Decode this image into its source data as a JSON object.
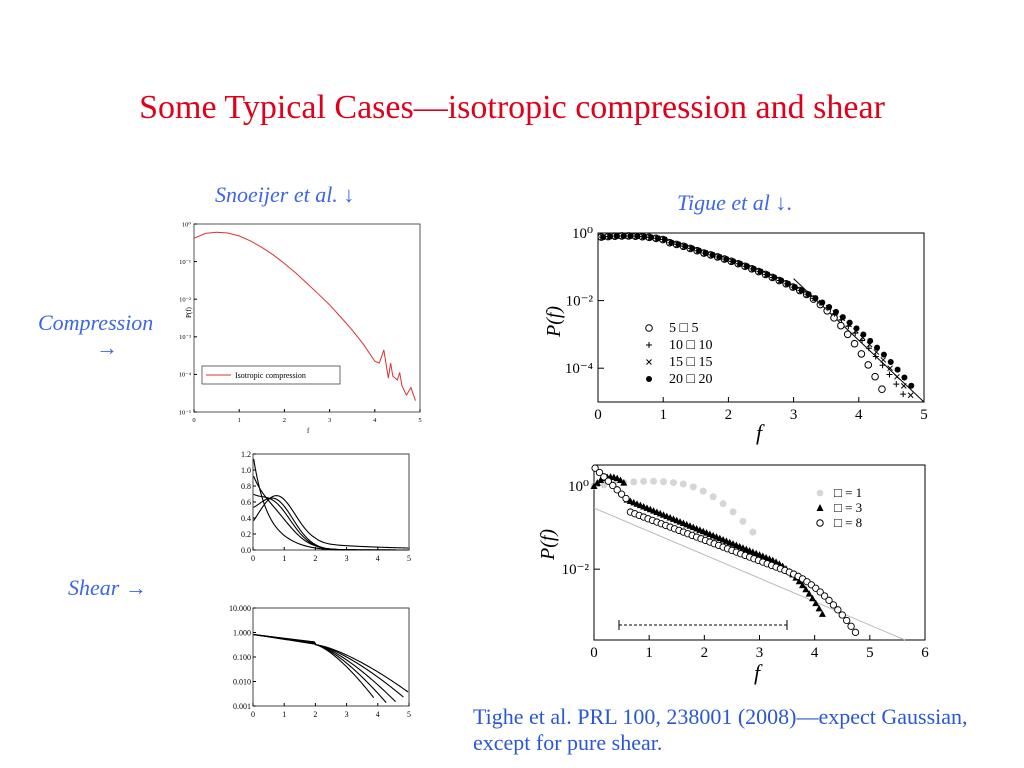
{
  "slide": {
    "title": "Some Typical Cases—isotropic compression and shear",
    "snoeijer_label": "Snoeijer et al.",
    "snoeijer_arrow": "↓",
    "tigue_label": "Tigue et al",
    "tigue_arrow": "↓.",
    "compression_label": "Compression",
    "compression_arrow": "→",
    "shear_label": "Shear",
    "shear_arrow": "→",
    "citation": "Tighe et al. PRL 100, 238001 (2008)—expect Gaussian, except for pure shear.",
    "colors": {
      "title": "#e0001a",
      "labels": "#3d66e8",
      "citation": "#2a57d6",
      "series_red": "#e03030"
    }
  },
  "chart_data": [
    {
      "id": "snoeijer-compression",
      "type": "line",
      "scale": "log-y",
      "xlim": [
        0,
        5
      ],
      "ylim": [
        -5,
        0
      ],
      "xticks": [
        "0",
        "1",
        "2",
        "3",
        "4",
        "5"
      ],
      "yticks": [
        "10⁰",
        "10⁻¹",
        "10⁻²",
        "10⁻³",
        "10⁻⁴",
        "10⁻⁵"
      ],
      "xlabel": "f",
      "ylabel": "P(f)",
      "legend": {
        "placement": "bottom-left",
        "entries": [
          "Isotropic compression"
        ]
      },
      "series": [
        {
          "name": "Isotropic compression",
          "color": "#e03030",
          "x": [
            0,
            0.25,
            0.5,
            0.75,
            1.0,
            1.25,
            1.5,
            1.75,
            2.0,
            2.25,
            2.5,
            2.75,
            3.0,
            3.25,
            3.5,
            3.75,
            4.0,
            4.1,
            4.2,
            4.3,
            4.35,
            4.4,
            4.5,
            4.55,
            4.6,
            4.7,
            4.8,
            4.9
          ],
          "y": [
            -0.38,
            -0.25,
            -0.22,
            -0.24,
            -0.32,
            -0.45,
            -0.62,
            -0.82,
            -1.05,
            -1.3,
            -1.58,
            -1.86,
            -2.15,
            -2.48,
            -2.82,
            -3.2,
            -3.65,
            -3.7,
            -3.35,
            -4.1,
            -3.7,
            -4.05,
            -4.15,
            -3.95,
            -4.3,
            -4.55,
            -4.35,
            -4.7
          ]
        }
      ]
    },
    {
      "id": "snoeijer-shear-linear",
      "type": "line",
      "xlim": [
        0,
        5
      ],
      "ylim": [
        0,
        1.2
      ],
      "xticks": [
        "0",
        "1",
        "2",
        "3",
        "4",
        "5"
      ],
      "yticks": [
        "1.2",
        "1.0",
        "0.8",
        "0.6",
        "0.4",
        "0.2",
        "0.0"
      ]
    },
    {
      "id": "snoeijer-shear-log",
      "type": "line",
      "scale": "log-y",
      "xlim": [
        0,
        5
      ],
      "ylim": [
        -3,
        1
      ],
      "xticks": [
        "0",
        "1",
        "2",
        "3",
        "4",
        "5"
      ],
      "yticks": [
        "10.000",
        "1.000",
        "0.100",
        "0.010",
        "0.001"
      ]
    },
    {
      "id": "tigue-compression",
      "type": "scatter",
      "scale": "log-y",
      "xlim": [
        0,
        5
      ],
      "ylim": [
        -5,
        0
      ],
      "xticks": [
        "0",
        "1",
        "2",
        "3",
        "4",
        "5"
      ],
      "yticks": [
        "10⁰",
        "10⁻²",
        "10⁻⁴"
      ],
      "xlabel": "f",
      "ylabel": "P(f)",
      "legend": {
        "placement": "bottom-left",
        "entries": [
          "5 □ 5",
          "10 □ 10",
          "15 □ 15",
          "20 □ 20"
        ]
      }
    },
    {
      "id": "tigue-shear",
      "type": "scatter",
      "scale": "log-y",
      "xlim": [
        0,
        6
      ],
      "ylim": [
        -3.7,
        0.5
      ],
      "xticks": [
        "0",
        "1",
        "2",
        "3",
        "4",
        "5",
        "6"
      ],
      "yticks": [
        "10⁰",
        "10⁻²"
      ],
      "xlabel": "f",
      "ylabel": "P(f)",
      "legend": {
        "placement": "top-right",
        "entries": [
          "□ = 1",
          "□ = 3",
          "□ = 8"
        ]
      }
    }
  ]
}
